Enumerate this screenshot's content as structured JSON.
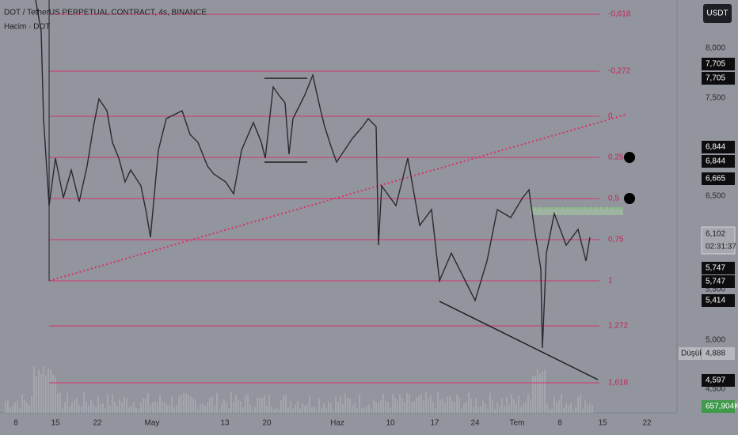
{
  "header": {
    "title": "DOT / TetherUS PERPETUAL CONTRACT, 4s, BINANCE",
    "volume_label": "Hacim · DOT"
  },
  "currency_button": "USDT",
  "fib_levels": [
    "-0,618",
    "-0,272",
    "0",
    "0,25",
    "0,5",
    "0,75",
    "1",
    "1,272",
    "1,618"
  ],
  "price_axis": {
    "labels": [
      "8,000",
      "7,500",
      "6,500",
      "5,500",
      "5,000",
      "4,500"
    ]
  },
  "badges": [
    {
      "text": "7,705"
    },
    {
      "text": "7,705"
    },
    {
      "text": "6,844"
    },
    {
      "text": "6,844"
    },
    {
      "text": "6,665"
    },
    {
      "text": "6,102",
      "sub": "02:31:37"
    },
    {
      "text": "5,747"
    },
    {
      "text": "5,747"
    },
    {
      "text": "5,414"
    },
    {
      "label": "Düşük",
      "text": "4,888"
    },
    {
      "text": "4,597"
    },
    {
      "text": "657,904K"
    }
  ],
  "time_axis": {
    "labels": [
      "8",
      "15",
      "22",
      "May",
      "13",
      "20",
      "Haz",
      "10",
      "17",
      "24",
      "Tem",
      "8",
      "15",
      "22"
    ]
  }
}
